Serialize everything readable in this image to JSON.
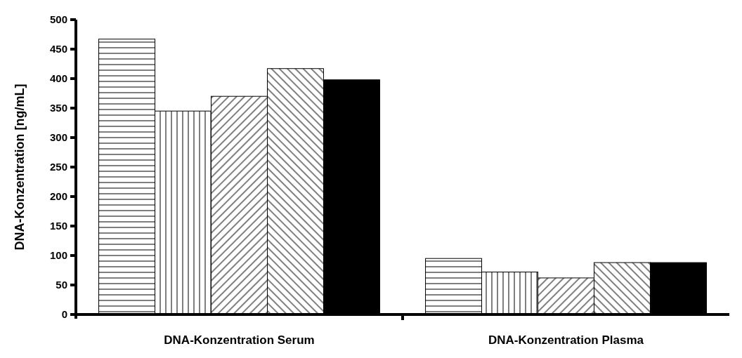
{
  "chart_data": {
    "type": "bar",
    "ylabel": "DNA-Konzentration [ng/mL]",
    "categories": [
      "DNA-Konzentration Serum",
      "DNA-Konzentration Plasma"
    ],
    "series": [
      {
        "color": "#000000",
        "values": [
          467,
          95
        ]
      },
      {
        "color": "#000000",
        "values": [
          345,
          72
        ]
      },
      {
        "color": "#000000",
        "values": [
          370,
          62
        ]
      },
      {
        "color": "#000000",
        "values": [
          417,
          88
        ]
      },
      {
        "color": "#000000",
        "values": [
          398,
          88
        ]
      }
    ],
    "ylim": [
      0,
      500
    ],
    "yticks": [
      0,
      50,
      100,
      150,
      200,
      250,
      300,
      350,
      400,
      450,
      500
    ],
    "grid": false
  }
}
